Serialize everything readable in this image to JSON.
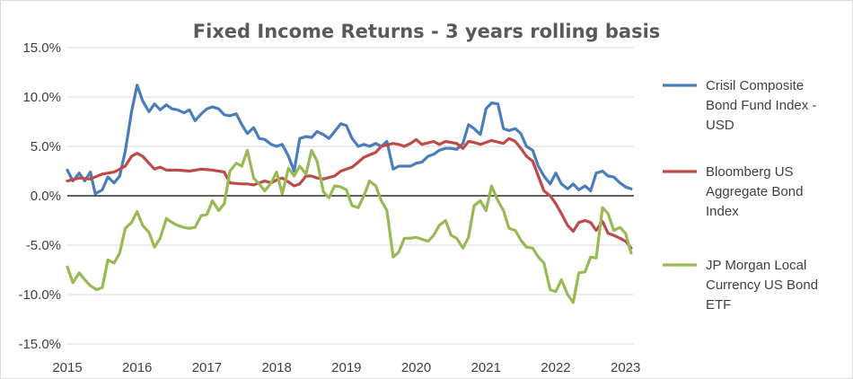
{
  "chart_data": {
    "type": "line",
    "title": "Fixed Income Returns - 3 years rolling basis",
    "xlabel": "",
    "ylabel": "",
    "xlim": [
      2015,
      2023.12
    ],
    "ylim": [
      -0.15,
      0.15
    ],
    "y_ticks": [
      "15.0%",
      "10.0%",
      "5.0%",
      "0.0%",
      "-5.0%",
      "-10.0%",
      "-15.0%"
    ],
    "x_ticks": [
      "2015",
      "2016",
      "2017",
      "2018",
      "2019",
      "2020",
      "2021",
      "2022",
      "2023"
    ],
    "grid": true,
    "legend_position": "right",
    "series": [
      {
        "name": "Crisil Composite Bond Fund Index - USD",
        "name_lines": [
          "Crisil Composite",
          "Bond Fund Index -",
          "USD"
        ],
        "color": "#4a7ebb",
        "points": [
          [
            2015.0,
            0.026
          ],
          [
            2015.08,
            0.015
          ],
          [
            2015.17,
            0.023
          ],
          [
            2015.25,
            0.015
          ],
          [
            2015.33,
            0.024
          ],
          [
            2015.4,
            0.002
          ],
          [
            2015.5,
            0.006
          ],
          [
            2015.58,
            0.019
          ],
          [
            2015.67,
            0.013
          ],
          [
            2015.75,
            0.02
          ],
          [
            2015.83,
            0.045
          ],
          [
            2015.92,
            0.085
          ],
          [
            2016.0,
            0.112
          ],
          [
            2016.08,
            0.096
          ],
          [
            2016.17,
            0.085
          ],
          [
            2016.25,
            0.093
          ],
          [
            2016.33,
            0.087
          ],
          [
            2016.42,
            0.092
          ],
          [
            2016.5,
            0.088
          ],
          [
            2016.58,
            0.087
          ],
          [
            2016.67,
            0.084
          ],
          [
            2016.75,
            0.087
          ],
          [
            2016.83,
            0.076
          ],
          [
            2016.92,
            0.083
          ],
          [
            2017.0,
            0.088
          ],
          [
            2017.08,
            0.09
          ],
          [
            2017.17,
            0.088
          ],
          [
            2017.25,
            0.082
          ],
          [
            2017.33,
            0.081
          ],
          [
            2017.42,
            0.083
          ],
          [
            2017.5,
            0.072
          ],
          [
            2017.58,
            0.063
          ],
          [
            2017.67,
            0.069
          ],
          [
            2017.75,
            0.058
          ],
          [
            2017.83,
            0.057
          ],
          [
            2017.92,
            0.052
          ],
          [
            2018.0,
            0.05
          ],
          [
            2018.08,
            0.052
          ],
          [
            2018.17,
            0.04
          ],
          [
            2018.25,
            0.025
          ],
          [
            2018.33,
            0.058
          ],
          [
            2018.42,
            0.06
          ],
          [
            2018.5,
            0.059
          ],
          [
            2018.58,
            0.065
          ],
          [
            2018.67,
            0.062
          ],
          [
            2018.75,
            0.058
          ],
          [
            2018.83,
            0.065
          ],
          [
            2018.92,
            0.073
          ],
          [
            2019.0,
            0.071
          ],
          [
            2019.08,
            0.058
          ],
          [
            2019.17,
            0.05
          ],
          [
            2019.25,
            0.052
          ],
          [
            2019.33,
            0.05
          ],
          [
            2019.42,
            0.053
          ],
          [
            2019.5,
            0.05
          ],
          [
            2019.58,
            0.055
          ],
          [
            2019.67,
            0.027
          ],
          [
            2019.75,
            0.03
          ],
          [
            2019.83,
            0.03
          ],
          [
            2019.92,
            0.03
          ],
          [
            2020.0,
            0.033
          ],
          [
            2020.08,
            0.034
          ],
          [
            2020.17,
            0.04
          ],
          [
            2020.25,
            0.042
          ],
          [
            2020.33,
            0.046
          ],
          [
            2020.42,
            0.048
          ],
          [
            2020.5,
            0.048
          ],
          [
            2020.58,
            0.047
          ],
          [
            2020.67,
            0.053
          ],
          [
            2020.75,
            0.072
          ],
          [
            2020.83,
            0.068
          ],
          [
            2020.92,
            0.062
          ],
          [
            2021.0,
            0.088
          ],
          [
            2021.08,
            0.094
          ],
          [
            2021.17,
            0.093
          ],
          [
            2021.25,
            0.068
          ],
          [
            2021.33,
            0.066
          ],
          [
            2021.42,
            0.068
          ],
          [
            2021.5,
            0.063
          ],
          [
            2021.58,
            0.05
          ],
          [
            2021.67,
            0.046
          ],
          [
            2021.75,
            0.03
          ],
          [
            2021.83,
            0.02
          ],
          [
            2021.92,
            0.012
          ],
          [
            2022.0,
            0.023
          ],
          [
            2022.08,
            0.012
          ],
          [
            2022.17,
            0.007
          ],
          [
            2022.25,
            0.012
          ],
          [
            2022.33,
            0.006
          ],
          [
            2022.42,
            0.01
          ],
          [
            2022.5,
            0.005
          ],
          [
            2022.58,
            0.023
          ],
          [
            2022.67,
            0.025
          ],
          [
            2022.75,
            0.02
          ],
          [
            2022.83,
            0.019
          ],
          [
            2022.92,
            0.013
          ],
          [
            2023.0,
            0.009
          ],
          [
            2023.08,
            0.007
          ]
        ]
      },
      {
        "name": "Bloomberg US Aggregate Bond Index",
        "name_lines": [
          "Bloomberg US",
          "Aggregate Bond",
          "Index"
        ],
        "color": "#be4b48",
        "points": [
          [
            2015.0,
            0.015
          ],
          [
            2015.17,
            0.018
          ],
          [
            2015.33,
            0.017
          ],
          [
            2015.5,
            0.022
          ],
          [
            2015.67,
            0.024
          ],
          [
            2015.83,
            0.03
          ],
          [
            2015.92,
            0.04
          ],
          [
            2016.0,
            0.043
          ],
          [
            2016.08,
            0.04
          ],
          [
            2016.17,
            0.033
          ],
          [
            2016.25,
            0.027
          ],
          [
            2016.33,
            0.029
          ],
          [
            2016.42,
            0.026
          ],
          [
            2016.58,
            0.026
          ],
          [
            2016.75,
            0.025
          ],
          [
            2016.92,
            0.027
          ],
          [
            2017.08,
            0.026
          ],
          [
            2017.25,
            0.024
          ],
          [
            2017.33,
            0.013
          ],
          [
            2017.5,
            0.012
          ],
          [
            2017.58,
            0.012
          ],
          [
            2017.67,
            0.011
          ],
          [
            2017.83,
            0.015
          ],
          [
            2017.92,
            0.013
          ],
          [
            2018.0,
            0.016
          ],
          [
            2018.08,
            0.018
          ],
          [
            2018.17,
            0.014
          ],
          [
            2018.25,
            0.01
          ],
          [
            2018.33,
            0.012
          ],
          [
            2018.42,
            0.02
          ],
          [
            2018.5,
            0.02
          ],
          [
            2018.58,
            0.018
          ],
          [
            2018.67,
            0.017
          ],
          [
            2018.83,
            0.02
          ],
          [
            2018.92,
            0.025
          ],
          [
            2019.08,
            0.029
          ],
          [
            2019.17,
            0.034
          ],
          [
            2019.25,
            0.039
          ],
          [
            2019.42,
            0.044
          ],
          [
            2019.5,
            0.05
          ],
          [
            2019.67,
            0.053
          ],
          [
            2019.75,
            0.052
          ],
          [
            2019.83,
            0.05
          ],
          [
            2019.92,
            0.053
          ],
          [
            2020.0,
            0.057
          ],
          [
            2020.08,
            0.052
          ],
          [
            2020.25,
            0.055
          ],
          [
            2020.33,
            0.052
          ],
          [
            2020.42,
            0.055
          ],
          [
            2020.58,
            0.053
          ],
          [
            2020.67,
            0.048
          ],
          [
            2020.75,
            0.055
          ],
          [
            2020.83,
            0.054
          ],
          [
            2020.92,
            0.052
          ],
          [
            2021.08,
            0.056
          ],
          [
            2021.25,
            0.053
          ],
          [
            2021.33,
            0.058
          ],
          [
            2021.42,
            0.055
          ],
          [
            2021.5,
            0.048
          ],
          [
            2021.58,
            0.04
          ],
          [
            2021.67,
            0.035
          ],
          [
            2021.75,
            0.02
          ],
          [
            2021.83,
            0.005
          ],
          [
            2021.92,
            0.0
          ],
          [
            2022.0,
            -0.008
          ],
          [
            2022.08,
            -0.018
          ],
          [
            2022.17,
            -0.03
          ],
          [
            2022.25,
            -0.036
          ],
          [
            2022.33,
            -0.027
          ],
          [
            2022.42,
            -0.025
          ],
          [
            2022.5,
            -0.027
          ],
          [
            2022.58,
            -0.035
          ],
          [
            2022.67,
            -0.026
          ],
          [
            2022.75,
            -0.038
          ],
          [
            2022.83,
            -0.04
          ],
          [
            2022.92,
            -0.043
          ],
          [
            2023.0,
            -0.046
          ],
          [
            2023.08,
            -0.053
          ]
        ]
      },
      {
        "name": "JP Morgan Local Currency US Bond ETF",
        "name_lines": [
          "JP Morgan Local",
          "Currency US Bond",
          "ETF"
        ],
        "color": "#98b954",
        "points": [
          [
            2015.0,
            -0.072
          ],
          [
            2015.08,
            -0.088
          ],
          [
            2015.17,
            -0.078
          ],
          [
            2015.25,
            -0.085
          ],
          [
            2015.33,
            -0.091
          ],
          [
            2015.42,
            -0.095
          ],
          [
            2015.5,
            -0.093
          ],
          [
            2015.58,
            -0.065
          ],
          [
            2015.67,
            -0.068
          ],
          [
            2015.75,
            -0.058
          ],
          [
            2015.83,
            -0.033
          ],
          [
            2015.92,
            -0.027
          ],
          [
            2016.0,
            -0.016
          ],
          [
            2016.08,
            -0.03
          ],
          [
            2016.17,
            -0.037
          ],
          [
            2016.25,
            -0.052
          ],
          [
            2016.33,
            -0.043
          ],
          [
            2016.42,
            -0.023
          ],
          [
            2016.5,
            -0.027
          ],
          [
            2016.58,
            -0.03
          ],
          [
            2016.67,
            -0.032
          ],
          [
            2016.75,
            -0.033
          ],
          [
            2016.83,
            -0.032
          ],
          [
            2016.92,
            -0.02
          ],
          [
            2017.0,
            -0.019
          ],
          [
            2017.08,
            -0.005
          ],
          [
            2017.17,
            -0.015
          ],
          [
            2017.25,
            -0.008
          ],
          [
            2017.33,
            0.025
          ],
          [
            2017.42,
            0.033
          ],
          [
            2017.5,
            0.03
          ],
          [
            2017.58,
            0.046
          ],
          [
            2017.67,
            0.018
          ],
          [
            2017.75,
            0.012
          ],
          [
            2017.83,
            0.005
          ],
          [
            2017.92,
            0.013
          ],
          [
            2018.0,
            0.024
          ],
          [
            2018.08,
            0.002
          ],
          [
            2018.17,
            0.028
          ],
          [
            2018.25,
            0.02
          ],
          [
            2018.33,
            0.03
          ],
          [
            2018.42,
            0.022
          ],
          [
            2018.5,
            0.046
          ],
          [
            2018.58,
            0.035
          ],
          [
            2018.67,
            0.004
          ],
          [
            2018.75,
            -0.002
          ],
          [
            2018.83,
            0.01
          ],
          [
            2018.92,
            0.009
          ],
          [
            2019.0,
            0.006
          ],
          [
            2019.08,
            -0.01
          ],
          [
            2019.17,
            -0.012
          ],
          [
            2019.25,
            0.0
          ],
          [
            2019.33,
            0.015
          ],
          [
            2019.42,
            0.01
          ],
          [
            2019.5,
            -0.005
          ],
          [
            2019.58,
            -0.015
          ],
          [
            2019.67,
            -0.062
          ],
          [
            2019.75,
            -0.057
          ],
          [
            2019.83,
            -0.043
          ],
          [
            2019.92,
            -0.043
          ],
          [
            2020.0,
            -0.042
          ],
          [
            2020.08,
            -0.044
          ],
          [
            2020.17,
            -0.046
          ],
          [
            2020.25,
            -0.04
          ],
          [
            2020.33,
            -0.03
          ],
          [
            2020.42,
            -0.025
          ],
          [
            2020.5,
            -0.04
          ],
          [
            2020.58,
            -0.043
          ],
          [
            2020.67,
            -0.053
          ],
          [
            2020.75,
            -0.042
          ],
          [
            2020.83,
            -0.01
          ],
          [
            2020.92,
            -0.005
          ],
          [
            2021.0,
            -0.015
          ],
          [
            2021.08,
            0.01
          ],
          [
            2021.17,
            -0.005
          ],
          [
            2021.25,
            -0.015
          ],
          [
            2021.33,
            -0.033
          ],
          [
            2021.42,
            -0.035
          ],
          [
            2021.5,
            -0.045
          ],
          [
            2021.58,
            -0.052
          ],
          [
            2021.67,
            -0.053
          ],
          [
            2021.75,
            -0.062
          ],
          [
            2021.83,
            -0.068
          ],
          [
            2021.92,
            -0.095
          ],
          [
            2022.0,
            -0.097
          ],
          [
            2022.08,
            -0.085
          ],
          [
            2022.17,
            -0.1
          ],
          [
            2022.25,
            -0.108
          ],
          [
            2022.33,
            -0.078
          ],
          [
            2022.42,
            -0.077
          ],
          [
            2022.5,
            -0.062
          ],
          [
            2022.58,
            -0.063
          ],
          [
            2022.67,
            -0.012
          ],
          [
            2022.75,
            -0.018
          ],
          [
            2022.83,
            -0.035
          ],
          [
            2022.92,
            -0.032
          ],
          [
            2023.0,
            -0.038
          ],
          [
            2023.08,
            -0.058
          ]
        ]
      }
    ]
  }
}
